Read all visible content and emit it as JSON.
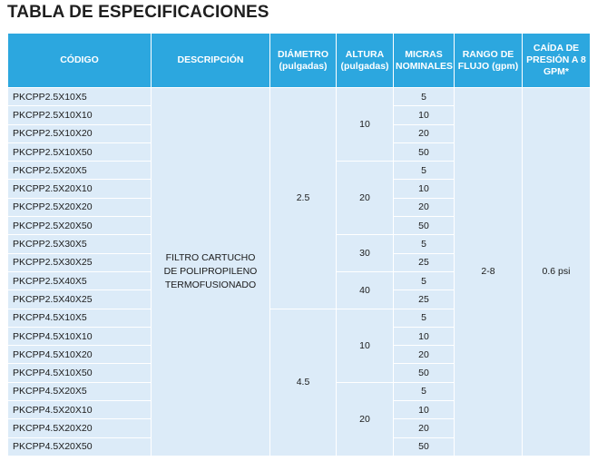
{
  "title": "TABLA DE ESPECIFICACIONES",
  "headers": {
    "codigo": "CÓDIGO",
    "descripcion": "DESCRIPCIÓN",
    "diametro_1": "DIÁMETRO",
    "diametro_2": "(pulgadas)",
    "altura_1": "ALTURA",
    "altura_2": "(pulgadas)",
    "micras_1": "MICRAS",
    "micras_2": "NOMINALES",
    "rango_1": "RANGO DE",
    "rango_2": "FLUJO (gpm)",
    "caida_1": "CAÍDA DE",
    "caida_2": "PRESIÓN A 8",
    "caida_3": "GPM*"
  },
  "description": {
    "line1": "FILTRO CARTUCHO",
    "line2": "DE POLIPROPILENO",
    "line3": "TERMOFUSIONADO"
  },
  "diameters": [
    "2.5",
    "4.5"
  ],
  "heights": [
    "10",
    "20",
    "30",
    "40",
    "10",
    "20"
  ],
  "flow_range": "2-8",
  "pressure_drop": "0.6 psi",
  "rows": [
    {
      "code": "PKCPP2.5X10X5",
      "micras": "5"
    },
    {
      "code": "PKCPP2.5X10X10",
      "micras": "10"
    },
    {
      "code": "PKCPP2.5X10X20",
      "micras": "20"
    },
    {
      "code": "PKCPP2.5X10X50",
      "micras": "50"
    },
    {
      "code": "PKCPP2.5X20X5",
      "micras": "5"
    },
    {
      "code": "PKCPP2.5X20X10",
      "micras": "10"
    },
    {
      "code": "PKCPP2.5X20X20",
      "micras": "20"
    },
    {
      "code": "PKCPP2.5X20X50",
      "micras": "50"
    },
    {
      "code": "PKCPP2.5X30X5",
      "micras": "5"
    },
    {
      "code": "PKCPP2.5X30X25",
      "micras": "25"
    },
    {
      "code": "PKCPP2.5X40X5",
      "micras": "5"
    },
    {
      "code": "PKCPP2.5X40X25",
      "micras": "25"
    },
    {
      "code": "PKCPP4.5X10X5",
      "micras": "5"
    },
    {
      "code": "PKCPP4.5X10X10",
      "micras": "10"
    },
    {
      "code": "PKCPP4.5X10X20",
      "micras": "20"
    },
    {
      "code": "PKCPP4.5X10X50",
      "micras": "50"
    },
    {
      "code": "PKCPP4.5X20X5",
      "micras": "5"
    },
    {
      "code": "PKCPP4.5X20X10",
      "micras": "10"
    },
    {
      "code": "PKCPP4.5X20X20",
      "micras": "20"
    },
    {
      "code": "PKCPP4.5X20X50",
      "micras": "50"
    }
  ]
}
